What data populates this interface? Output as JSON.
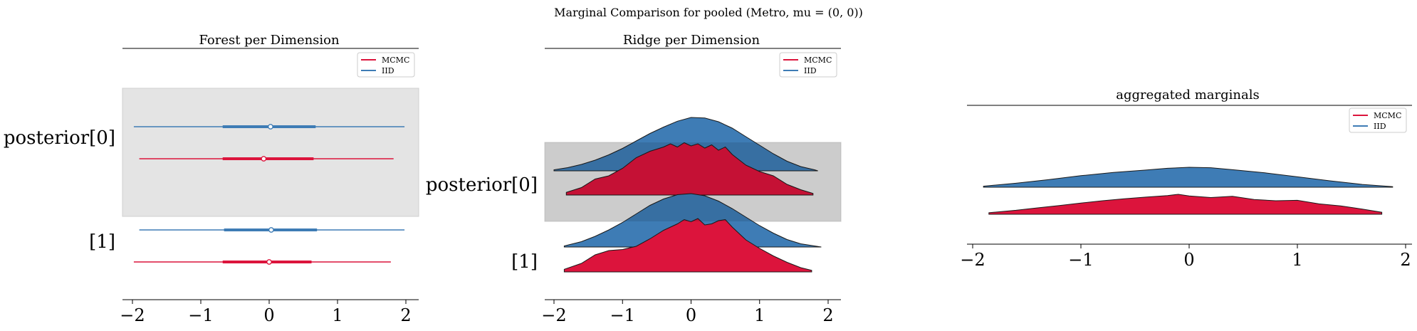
{
  "figure": {
    "suptitle": "Marginal Comparison for pooled (Metro, mu = (0, 0))"
  },
  "colors": {
    "MCMC": "#dc143c",
    "IID": "#3e7cb5",
    "highlight_band": "#e4e4e4",
    "axis": "#000000",
    "ridge_outline": "#1a1a1a"
  },
  "legend": {
    "entries": [
      "MCMC",
      "IID"
    ],
    "placement": "upper right"
  },
  "chart_data": [
    {
      "type": "forest",
      "title": "Forest per Dimension",
      "xlim": [
        -2.2,
        2.2
      ],
      "xticks": [
        -2,
        -1,
        0,
        1,
        2
      ],
      "xtick_labels": [
        "−2",
        "−1",
        "0",
        "1",
        "2"
      ],
      "dimension_labels": [
        "posterior[0]",
        "[1]"
      ],
      "highlighted_dimension": 0,
      "series": [
        {
          "name": "IID",
          "dimensions": [
            {
              "dim": 0,
              "min": -1.98,
              "q25": -0.68,
              "median": 0.02,
              "q75": 0.68,
              "max": 1.98
            },
            {
              "dim": 1,
              "min": -1.9,
              "q25": -0.66,
              "median": 0.03,
              "q75": 0.7,
              "max": 1.98
            }
          ]
        },
        {
          "name": "MCMC",
          "dimensions": [
            {
              "dim": 0,
              "min": -1.9,
              "q25": -0.68,
              "median": -0.08,
              "q75": 0.65,
              "max": 1.82
            },
            {
              "dim": 1,
              "min": -1.98,
              "q25": -0.68,
              "median": 0.0,
              "q75": 0.62,
              "max": 1.78
            }
          ]
        }
      ]
    },
    {
      "type": "ridge",
      "title": "Ridge per Dimension",
      "xlim": [
        -2.2,
        2.1
      ],
      "xticks": [
        -2,
        -1,
        0,
        1,
        2
      ],
      "xtick_labels": [
        "−2",
        "−1",
        "0",
        "1",
        "2"
      ],
      "dimension_labels": [
        "posterior[0]",
        "[1]"
      ],
      "highlighted_dimension": 0,
      "series": [
        {
          "name": "IID",
          "dimensions": [
            {
              "dim": 0,
              "x": [
                -2.0,
                -1.8,
                -1.6,
                -1.4,
                -1.2,
                -1.0,
                -0.8,
                -0.6,
                -0.4,
                -0.2,
                0.0,
                0.2,
                0.4,
                0.6,
                0.8,
                1.0,
                1.2,
                1.4,
                1.6,
                1.8,
                1.85
              ],
              "density": [
                0.02,
                0.06,
                0.12,
                0.2,
                0.3,
                0.42,
                0.56,
                0.7,
                0.82,
                0.93,
                1.0,
                0.99,
                0.92,
                0.8,
                0.64,
                0.48,
                0.32,
                0.18,
                0.08,
                0.02,
                0.0
              ]
            },
            {
              "dim": 1,
              "x": [
                -1.85,
                -1.6,
                -1.4,
                -1.2,
                -1.0,
                -0.8,
                -0.6,
                -0.4,
                -0.2,
                0.0,
                0.2,
                0.4,
                0.6,
                0.8,
                1.0,
                1.2,
                1.4,
                1.6,
                1.8,
                1.9
              ],
              "density": [
                0.02,
                0.1,
                0.2,
                0.32,
                0.46,
                0.62,
                0.78,
                0.9,
                0.98,
                1.0,
                0.96,
                0.86,
                0.72,
                0.56,
                0.4,
                0.26,
                0.14,
                0.06,
                0.02,
                0.0
              ]
            }
          ]
        },
        {
          "name": "MCMC",
          "dimensions": [
            {
              "dim": 0,
              "x": [
                -1.82,
                -1.6,
                -1.4,
                -1.2,
                -1.0,
                -0.8,
                -0.6,
                -0.4,
                -0.3,
                -0.2,
                -0.1,
                0.0,
                0.1,
                0.2,
                0.3,
                0.4,
                0.5,
                0.6,
                0.8,
                1.0,
                1.2,
                1.4,
                1.6,
                1.78
              ],
              "density": [
                0.05,
                0.14,
                0.3,
                0.36,
                0.5,
                0.7,
                0.82,
                0.9,
                0.96,
                0.9,
                0.98,
                0.92,
                0.96,
                0.88,
                0.94,
                0.84,
                0.9,
                0.76,
                0.56,
                0.44,
                0.36,
                0.2,
                0.1,
                0.03
              ]
            },
            {
              "dim": 1,
              "x": [
                -1.85,
                -1.6,
                -1.4,
                -1.2,
                -1.0,
                -0.8,
                -0.6,
                -0.4,
                -0.2,
                -0.1,
                0.0,
                0.1,
                0.2,
                0.3,
                0.4,
                0.5,
                0.6,
                0.8,
                1.0,
                1.2,
                1.4,
                1.6,
                1.76
              ],
              "density": [
                0.05,
                0.16,
                0.32,
                0.4,
                0.42,
                0.48,
                0.62,
                0.78,
                0.9,
                0.98,
                0.94,
                1.0,
                0.88,
                0.9,
                0.96,
                0.98,
                0.84,
                0.6,
                0.44,
                0.3,
                0.18,
                0.08,
                0.03
              ]
            }
          ]
        }
      ]
    },
    {
      "type": "ridge",
      "title": "aggregated marginals",
      "xlim": [
        -2.1,
        2.1
      ],
      "xticks": [
        -2,
        -1,
        0,
        1,
        2
      ],
      "xtick_labels": [
        "−2",
        "−1",
        "0",
        "1",
        "2"
      ],
      "series": [
        {
          "name": "IID",
          "x": [
            -1.9,
            -1.6,
            -1.3,
            -1.0,
            -0.7,
            -0.4,
            -0.2,
            0.0,
            0.2,
            0.4,
            0.7,
            1.0,
            1.3,
            1.6,
            1.88
          ],
          "density": [
            0.05,
            0.2,
            0.38,
            0.58,
            0.74,
            0.86,
            0.95,
            1.0,
            0.98,
            0.88,
            0.72,
            0.52,
            0.32,
            0.14,
            0.03
          ]
        },
        {
          "name": "MCMC",
          "x": [
            -1.85,
            -1.6,
            -1.4,
            -1.2,
            -1.0,
            -0.8,
            -0.6,
            -0.4,
            -0.2,
            -0.1,
            0.0,
            0.2,
            0.4,
            0.6,
            0.8,
            1.0,
            1.2,
            1.4,
            1.6,
            1.78
          ],
          "density": [
            0.08,
            0.2,
            0.32,
            0.44,
            0.56,
            0.68,
            0.78,
            0.86,
            0.94,
            1.0,
            0.92,
            0.84,
            0.9,
            0.74,
            0.68,
            0.7,
            0.52,
            0.42,
            0.26,
            0.1
          ]
        }
      ]
    }
  ]
}
